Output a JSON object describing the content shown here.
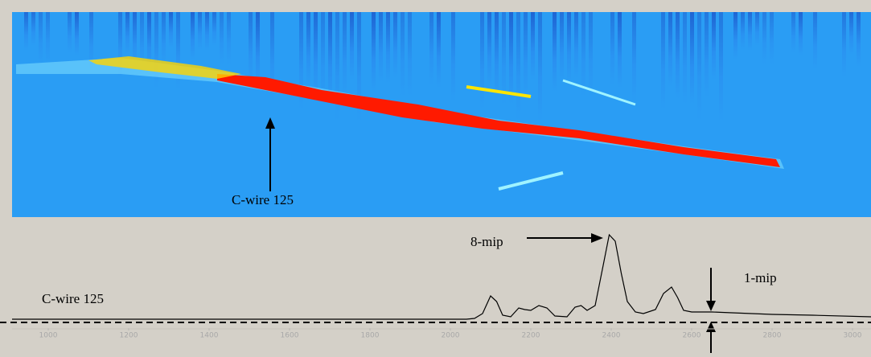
{
  "heatmap": {
    "label": "C-wire 125"
  },
  "chart_data": {
    "type": "line",
    "x": [
      910,
      2040,
      2060,
      2080,
      2100,
      2115,
      2130,
      2150,
      2170,
      2185,
      2200,
      2220,
      2240,
      2260,
      2290,
      2310,
      2325,
      2340,
      2360,
      2380,
      2395,
      2410,
      2425,
      2440,
      2460,
      2480,
      2510,
      2530,
      2550,
      2565,
      2580,
      2600,
      2650,
      2700,
      2800,
      2900,
      3046
    ],
    "series": [
      {
        "color": "#000000",
        "values": [
          13,
          13,
          14,
          20,
          42,
          35,
          18,
          16,
          27,
          25,
          24,
          30,
          27,
          17,
          16,
          28,
          30,
          24,
          30,
          80,
          118,
          110,
          70,
          35,
          22,
          20,
          25,
          45,
          53,
          40,
          24,
          22,
          22,
          21,
          19,
          18,
          16
        ]
      }
    ],
    "xlim": [
      910,
      3046
    ],
    "xticks": [
      1000,
      1200,
      1400,
      1600,
      1800,
      2000,
      2200,
      2400,
      2600,
      2800,
      3000
    ],
    "ylim": [
      0,
      130
    ],
    "reference_line": 9,
    "annotations": [
      "C-wire 125",
      "8-mip",
      "1-mip"
    ]
  }
}
